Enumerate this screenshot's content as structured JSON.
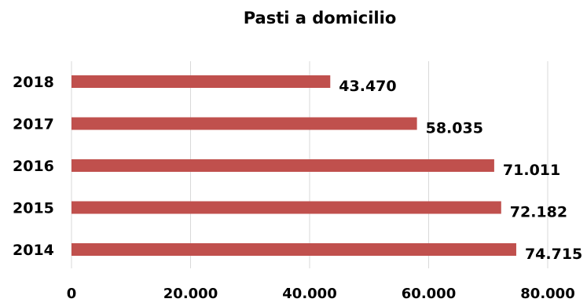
{
  "chart_data": {
    "type": "bar",
    "orientation": "horizontal",
    "title": "Pasti a domicilio",
    "xlabel": "",
    "ylabel": "",
    "categories": [
      "2018",
      "2017",
      "2016",
      "2015",
      "2014"
    ],
    "values": [
      43470,
      58035,
      71011,
      72182,
      74715
    ],
    "value_labels": [
      "43.470",
      "58.035",
      "71.011",
      "72.182",
      "74.715"
    ],
    "xlim": [
      0,
      80000
    ],
    "xticks": [
      0,
      20000,
      40000,
      60000,
      80000
    ],
    "xtick_labels": [
      "0",
      "20.000",
      "40.000",
      "60.000",
      "80.000"
    ],
    "grid": "vertical",
    "legend": "none",
    "bar_color": "#C0504D",
    "grid_color": "#D9D9D9"
  }
}
